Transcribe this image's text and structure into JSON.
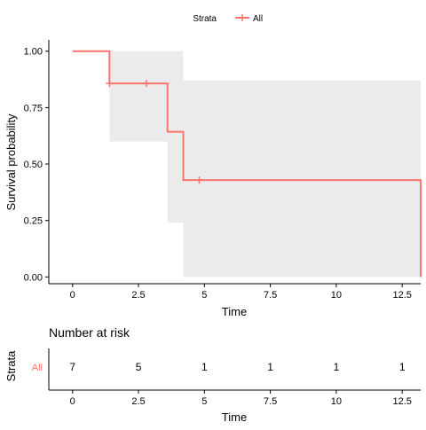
{
  "legend": {
    "title": "Strata",
    "entry": "All"
  },
  "chart_data": {
    "type": "line",
    "subtype": "kaplan-meier survival curve",
    "xlabel": "Time",
    "ylabel": "Survival probability",
    "xlim": [
      -0.9,
      13.2
    ],
    "ylim": [
      -0.03,
      1.05
    ],
    "x_ticks": [
      0,
      2.5,
      5,
      7.5,
      10,
      12.5
    ],
    "x_tick_labels": [
      "0",
      "2.5",
      "5",
      "7.5",
      "10",
      "12.5"
    ],
    "y_ticks": [
      0,
      0.25,
      0.5,
      0.75,
      1
    ],
    "y_tick_labels": [
      "0.00",
      "0.25",
      "0.50",
      "0.75",
      "1.00"
    ],
    "grid": false,
    "legend_position": "top",
    "series": [
      {
        "name": "All",
        "color": "#F8766D",
        "steps": [
          {
            "time": 0,
            "surv": 1.0
          },
          {
            "time": 1.4,
            "surv": 0.857
          },
          {
            "time": 3.6,
            "surv": 0.643
          },
          {
            "time": 4.2,
            "surv": 0.429
          },
          {
            "time": 13.2,
            "surv": 0.0
          }
        ],
        "censored": [
          {
            "time": 1.4,
            "surv": 0.857
          },
          {
            "time": 2.8,
            "surv": 0.857
          },
          {
            "time": 4.8,
            "surv": 0.429
          }
        ],
        "confidence_band": [
          {
            "from": 0,
            "to": 1.4,
            "lower": 1.0,
            "upper": 1.0
          },
          {
            "from": 1.4,
            "to": 3.6,
            "lower": 0.6,
            "upper": 1.0
          },
          {
            "from": 3.6,
            "to": 4.2,
            "lower": 0.24,
            "upper": 1.0
          },
          {
            "from": 4.2,
            "to": 13.2,
            "lower": 0.0,
            "upper": 0.87
          }
        ]
      }
    ]
  },
  "risk_table": {
    "title": "Number at risk",
    "ylabel": "Strata",
    "xlabel": "Time",
    "row_label": "All",
    "row_color": "#F8766D",
    "x_ticks": [
      0,
      2.5,
      5,
      7.5,
      10,
      12.5
    ],
    "x_tick_labels": [
      "0",
      "2.5",
      "5",
      "7.5",
      "10",
      "12.5"
    ],
    "values": [
      "7",
      "5",
      "1",
      "1",
      "1",
      "1"
    ]
  }
}
